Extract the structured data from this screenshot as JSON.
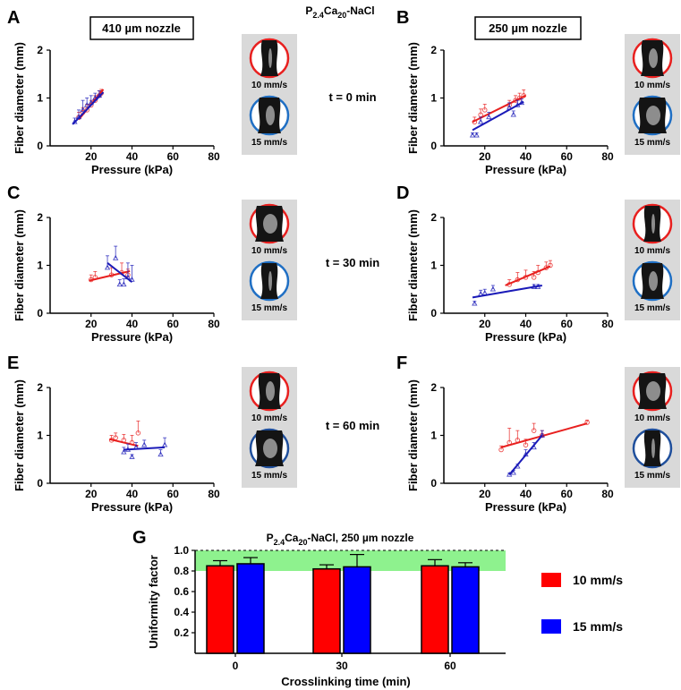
{
  "figure": {
    "top_title": {
      "main": "P",
      "sub1": "2.4",
      "mid": "Ca",
      "sub2": "20",
      "tail": "-NaCl"
    },
    "nozzle_left": "410 µm nozzle",
    "nozzle_right": "250 µm nozzle",
    "time_labels": [
      "t = 0 min",
      "t = 30 min",
      "t = 60 min"
    ],
    "image_captions": [
      "10 mm/s",
      "15 mm/s"
    ],
    "colors": {
      "red": "#e8201f",
      "blue": "#1a1ab8",
      "green_band": "#8ef28e",
      "bar_red": "#ff0000",
      "bar_blue": "#0000ff"
    }
  },
  "chart_data": [
    {
      "id": "A",
      "type": "scatter",
      "panel_label": "A",
      "xlabel": "Pressure (kPa)",
      "ylabel": "Fiber diameter (mm)",
      "xlim": [
        0,
        80
      ],
      "ylim": [
        0,
        2
      ],
      "xticks": [
        20,
        40,
        60,
        80
      ],
      "yticks": [
        0,
        1,
        2
      ],
      "series": [
        {
          "name": "10 mm/s",
          "color": "red",
          "marker": "circle",
          "points": [
            [
              14,
              0.6,
              0.1
            ],
            [
              16,
              0.7,
              0.1
            ],
            [
              18,
              0.75,
              0.12
            ],
            [
              20,
              0.85,
              0.1
            ],
            [
              22,
              0.95,
              0.1
            ],
            [
              24,
              1.05,
              0.1
            ],
            [
              25,
              1.1,
              0.08
            ]
          ],
          "fit": [
            [
              14,
              0.55
            ],
            [
              26,
              1.18
            ]
          ]
        },
        {
          "name": "15 mm/s",
          "color": "blue",
          "marker": "triangle",
          "points": [
            [
              12,
              0.5,
              0.08
            ],
            [
              14,
              0.6,
              0.15
            ],
            [
              16,
              0.75,
              0.2
            ],
            [
              18,
              0.85,
              0.15
            ],
            [
              20,
              0.9,
              0.15
            ],
            [
              22,
              1.0,
              0.1
            ],
            [
              24,
              1.05,
              0.1
            ]
          ],
          "fit": [
            [
              11,
              0.45
            ],
            [
              26,
              1.12
            ]
          ]
        }
      ]
    },
    {
      "id": "B",
      "type": "scatter",
      "panel_label": "B",
      "xlabel": "Pressure (kPa)",
      "ylabel": "Fiber diameter (mm)",
      "xlim": [
        0,
        80
      ],
      "ylim": [
        0,
        2
      ],
      "xticks": [
        20,
        40,
        60,
        80
      ],
      "yticks": [
        0,
        1,
        2
      ],
      "series": [
        {
          "name": "10 mm/s",
          "color": "red",
          "marker": "circle",
          "points": [
            [
              15,
              0.5,
              0.1
            ],
            [
              18,
              0.65,
              0.12
            ],
            [
              20,
              0.75,
              0.12
            ],
            [
              32,
              0.85,
              0.1
            ],
            [
              35,
              0.95,
              0.1
            ],
            [
              37,
              1.0,
              0.1
            ],
            [
              39,
              1.05,
              0.12
            ]
          ],
          "fit": [
            [
              14,
              0.5
            ],
            [
              40,
              1.05
            ]
          ]
        },
        {
          "name": "15 mm/s",
          "color": "blue",
          "marker": "triangle",
          "points": [
            [
              14,
              0.22,
              0.05
            ],
            [
              16,
              0.22,
              0.05
            ],
            [
              18,
              0.5,
              0.1
            ],
            [
              22,
              0.6,
              0.1
            ],
            [
              32,
              0.8,
              0.1
            ],
            [
              34,
              0.65,
              0.08
            ],
            [
              36,
              0.85,
              0.1
            ],
            [
              38,
              0.9,
              0.08
            ]
          ],
          "fit": [
            [
              14,
              0.33
            ],
            [
              39,
              0.92
            ]
          ]
        }
      ]
    },
    {
      "id": "C",
      "type": "scatter",
      "panel_label": "C",
      "xlabel": "Pressure (kPa)",
      "ylabel": "Fiber diameter (mm)",
      "xlim": [
        0,
        80
      ],
      "ylim": [
        0,
        2
      ],
      "xticks": [
        20,
        40,
        60,
        80
      ],
      "yticks": [
        0,
        1,
        2
      ],
      "series": [
        {
          "name": "10 mm/s",
          "color": "red",
          "marker": "circle",
          "points": [
            [
              20,
              0.7,
              0.1
            ],
            [
              22,
              0.75,
              0.12
            ],
            [
              30,
              0.8,
              0.15
            ],
            [
              35,
              0.85,
              0.2
            ],
            [
              38,
              0.8,
              0.12
            ]
          ],
          "fit": [
            [
              19,
              0.68
            ],
            [
              39,
              0.88
            ]
          ]
        },
        {
          "name": "15 mm/s",
          "color": "blue",
          "marker": "triangle",
          "points": [
            [
              28,
              0.95,
              0.25
            ],
            [
              32,
              1.15,
              0.25
            ],
            [
              34,
              0.6,
              0.1
            ],
            [
              36,
              0.6,
              0.12
            ],
            [
              38,
              0.75,
              0.3
            ],
            [
              40,
              0.7,
              0.3
            ]
          ],
          "fit": [
            [
              28,
              1.05
            ],
            [
              40,
              0.65
            ]
          ]
        }
      ]
    },
    {
      "id": "D",
      "type": "scatter",
      "panel_label": "D",
      "xlabel": "Pressure (kPa)",
      "ylabel": "Fiber diameter (mm)",
      "xlim": [
        0,
        80
      ],
      "ylim": [
        0,
        2
      ],
      "xticks": [
        20,
        40,
        60,
        80
      ],
      "yticks": [
        0,
        1,
        2
      ],
      "series": [
        {
          "name": "10 mm/s",
          "color": "red",
          "marker": "circle",
          "points": [
            [
              32,
              0.6,
              0.1
            ],
            [
              36,
              0.7,
              0.15
            ],
            [
              40,
              0.75,
              0.15
            ],
            [
              44,
              0.75,
              0.12
            ],
            [
              46,
              0.85,
              0.15
            ],
            [
              50,
              0.95,
              0.12
            ],
            [
              52,
              1.0,
              0.1
            ]
          ],
          "fit": [
            [
              30,
              0.58
            ],
            [
              52,
              0.98
            ]
          ]
        },
        {
          "name": "15 mm/s",
          "color": "blue",
          "marker": "triangle",
          "points": [
            [
              15,
              0.2,
              0.05
            ],
            [
              18,
              0.4,
              0.08
            ],
            [
              20,
              0.42,
              0.08
            ],
            [
              24,
              0.5,
              0.08
            ],
            [
              44,
              0.55,
              0.05
            ],
            [
              46,
              0.55,
              0.05
            ]
          ],
          "fit": [
            [
              14,
              0.33
            ],
            [
              48,
              0.58
            ]
          ]
        }
      ]
    },
    {
      "id": "E",
      "type": "scatter",
      "panel_label": "E",
      "xlabel": "Pressure (kPa)",
      "ylabel": "Fiber diameter (mm)",
      "xlim": [
        0,
        80
      ],
      "ylim": [
        0,
        2
      ],
      "xticks": [
        20,
        40,
        60,
        80
      ],
      "yticks": [
        0,
        1,
        2
      ],
      "series": [
        {
          "name": "10 mm/s",
          "color": "red",
          "marker": "circle",
          "points": [
            [
              30,
              0.9,
              0.1
            ],
            [
              32,
              0.95,
              0.1
            ],
            [
              36,
              0.9,
              0.12
            ],
            [
              40,
              0.85,
              0.15
            ],
            [
              43,
              1.05,
              0.25
            ]
          ],
          "fit": [
            [
              29,
              0.92
            ],
            [
              43,
              0.78
            ]
          ]
        },
        {
          "name": "15 mm/s",
          "color": "blue",
          "marker": "triangle",
          "points": [
            [
              36,
              0.65,
              0.1
            ],
            [
              38,
              0.7,
              0.12
            ],
            [
              40,
              0.55,
              0.05
            ],
            [
              42,
              0.75,
              0.1
            ],
            [
              46,
              0.8,
              0.1
            ],
            [
              54,
              0.6,
              0.1
            ],
            [
              56,
              0.8,
              0.15
            ]
          ],
          "fit": [
            [
              36,
              0.7
            ],
            [
              56,
              0.75
            ]
          ]
        }
      ]
    },
    {
      "id": "F",
      "type": "scatter",
      "panel_label": "F",
      "xlabel": "Pressure (kPa)",
      "ylabel": "Fiber diameter (mm)",
      "xlim": [
        0,
        80
      ],
      "ylim": [
        0,
        2
      ],
      "xticks": [
        20,
        40,
        60,
        80
      ],
      "yticks": [
        0,
        1,
        2
      ],
      "series": [
        {
          "name": "10 mm/s",
          "color": "red",
          "marker": "circle",
          "points": [
            [
              28,
              0.7,
              0.08
            ],
            [
              32,
              0.85,
              0.3
            ],
            [
              36,
              0.9,
              0.2
            ],
            [
              40,
              0.8,
              0.12
            ],
            [
              44,
              1.1,
              0.15
            ],
            [
              48,
              1.0,
              0.1
            ],
            [
              70,
              1.27,
              0.05
            ]
          ],
          "fit": [
            [
              28,
              0.75
            ],
            [
              70,
              1.25
            ]
          ]
        },
        {
          "name": "15 mm/s",
          "color": "blue",
          "marker": "triangle",
          "points": [
            [
              32,
              0.18,
              0.03
            ],
            [
              34,
              0.22,
              0.05
            ],
            [
              36,
              0.35,
              0.05
            ],
            [
              40,
              0.6,
              0.1
            ],
            [
              44,
              0.75,
              0.1
            ],
            [
              48,
              1.0,
              0.1
            ]
          ],
          "fit": [
            [
              32,
              0.18
            ],
            [
              48,
              1.0
            ]
          ]
        }
      ]
    },
    {
      "id": "G",
      "type": "bar",
      "panel_label": "G",
      "title": {
        "main": "P",
        "sub1": "2.4",
        "mid": "Ca",
        "sub2": "20",
        "tail": "-NaCl, 250 µm nozzle"
      },
      "xlabel": "Crosslinking time (min)",
      "ylabel": "Uniformity factor",
      "categories": [
        "0",
        "30",
        "60"
      ],
      "ylim": [
        0,
        1.0
      ],
      "yticks": [
        "0.2",
        "0.4",
        "0.6",
        "0.8",
        "1.0"
      ],
      "band": [
        0.8,
        1.0
      ],
      "series": [
        {
          "name": "10 mm/s",
          "color": "bar_red",
          "values": [
            0.85,
            0.82,
            0.85
          ],
          "errors": [
            0.05,
            0.04,
            0.06
          ]
        },
        {
          "name": "15 mm/s",
          "color": "bar_blue",
          "values": [
            0.87,
            0.84,
            0.84
          ],
          "errors": [
            0.06,
            0.12,
            0.04
          ]
        }
      ]
    }
  ]
}
